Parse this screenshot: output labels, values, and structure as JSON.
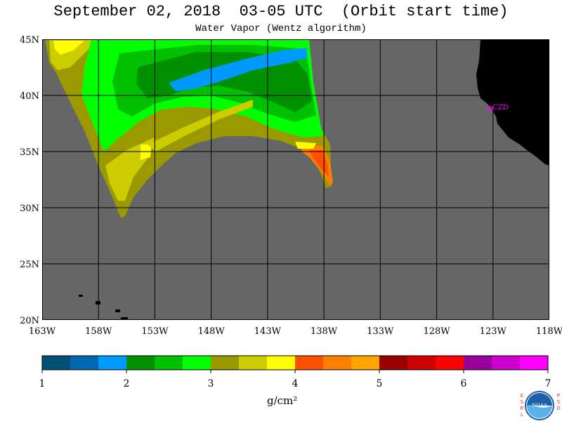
{
  "header": {
    "title": "September 02, 2018  03-05 UTC  (Orbit start time)",
    "subtitle": "Water Vapor (Wentz algorithm)"
  },
  "map": {
    "lat_labels": [
      "45N",
      "40N",
      "35N",
      "30N",
      "25N",
      "20N"
    ],
    "lon_labels": [
      "163W",
      "158W",
      "153W",
      "148W",
      "143W",
      "138W",
      "133W",
      "128W",
      "123W",
      "118W"
    ],
    "station_label": "CZD",
    "colors": {
      "ocean_nodata": "#666666",
      "land": "#000000",
      "station": "#ff00ff"
    }
  },
  "colorbar": {
    "tick_labels": [
      "1",
      "2",
      "3",
      "4",
      "5",
      "6",
      "7"
    ],
    "units": "g/cm²",
    "colors": [
      "#004f74",
      "#0068b0",
      "#0099ff",
      "#009000",
      "#00c000",
      "#00ff00",
      "#9a9a00",
      "#cccc00",
      "#ffff00",
      "#ff5000",
      "#ff7f00",
      "#ffa500",
      "#990000",
      "#cc0000",
      "#ff0000",
      "#990099",
      "#cc00cc",
      "#ff00ff"
    ]
  },
  "logo": {
    "left_letters": [
      "E",
      "S",
      "R",
      "L"
    ],
    "right_letters": [
      "P",
      "S",
      "D"
    ],
    "badge_text": "NOAA"
  }
}
